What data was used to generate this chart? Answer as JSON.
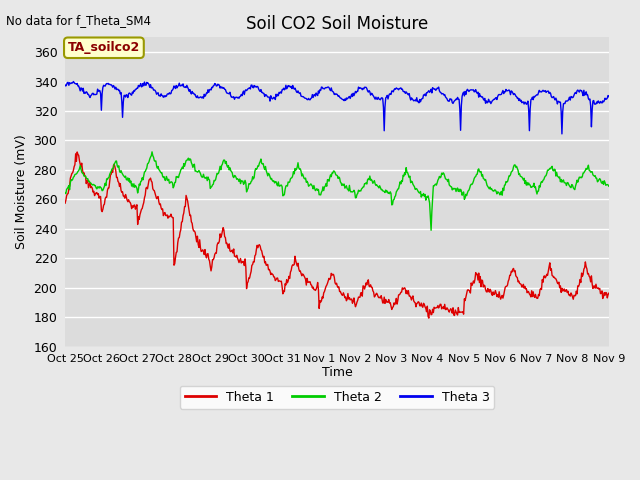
{
  "title": "Soil CO2 Soil Moisture",
  "ylabel": "Soil Moisture (mV)",
  "xlabel": "Time",
  "no_data_text": "No data for f_Theta_SM4",
  "annotation_text": "TA_soilco2",
  "ylim": [
    160,
    370
  ],
  "yticks": [
    160,
    180,
    200,
    220,
    240,
    260,
    280,
    300,
    320,
    340,
    360
  ],
  "xtick_labels": [
    "Oct 25",
    "Oct 26",
    "Oct 27",
    "Oct 28",
    "Oct 29",
    "Oct 30",
    "Oct 31",
    "Nov 1",
    "Nov 2",
    "Nov 3",
    "Nov 4",
    "Nov 5",
    "Nov 6",
    "Nov 7",
    "Nov 8",
    "Nov 9"
  ],
  "bg_color": "#e8e8e8",
  "plot_bg_color": "#dcdcdc",
  "grid_color": "#ffffff",
  "theta1_color": "#dd0000",
  "theta2_color": "#00cc00",
  "theta3_color": "#0000ee",
  "legend_labels": [
    "Theta 1",
    "Theta 2",
    "Theta 3"
  ],
  "n_days": 15,
  "n_per_day": 48
}
